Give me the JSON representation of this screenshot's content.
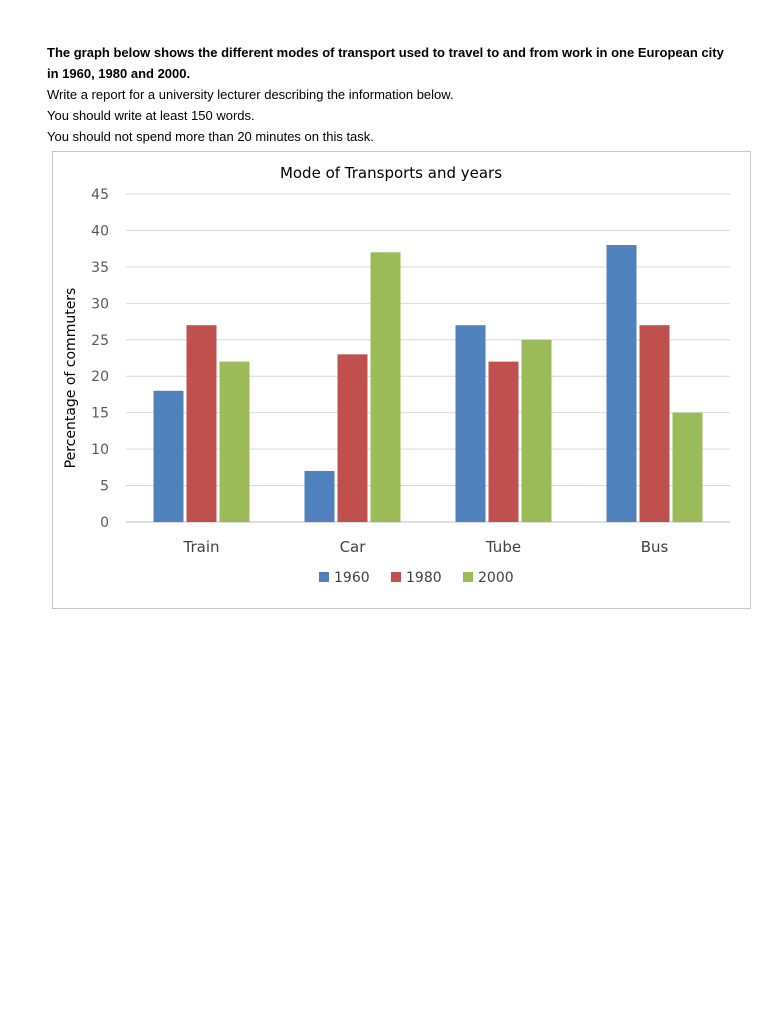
{
  "task": {
    "intro": "The graph below shows the different modes of transport used to travel to and from work in one European city in 1960, 1980 and 2000.",
    "line2": "Write a report for a university lecturer describing the information below.",
    "line3": "You should write at least 150 words.",
    "line4": "You should not spend more than 20 minutes on this task."
  },
  "chart_data": {
    "type": "bar",
    "title": "Mode of Transports and years",
    "xlabel": "",
    "ylabel": "Percentage of commuters",
    "categories": [
      "Train",
      "Car",
      "Tube",
      "Bus"
    ],
    "series": [
      {
        "name": "1960",
        "color": "#4f81bd",
        "values": [
          18,
          7,
          27,
          38
        ]
      },
      {
        "name": "1980",
        "color": "#c0504d",
        "values": [
          27,
          23,
          22,
          27
        ]
      },
      {
        "name": "2000",
        "color": "#9bbb59",
        "values": [
          22,
          37,
          25,
          15
        ]
      }
    ],
    "ylim": [
      0,
      45
    ],
    "yticks": [
      0,
      5,
      10,
      15,
      20,
      25,
      30,
      35,
      40,
      45
    ],
    "grid": true,
    "legend": "bottom"
  }
}
